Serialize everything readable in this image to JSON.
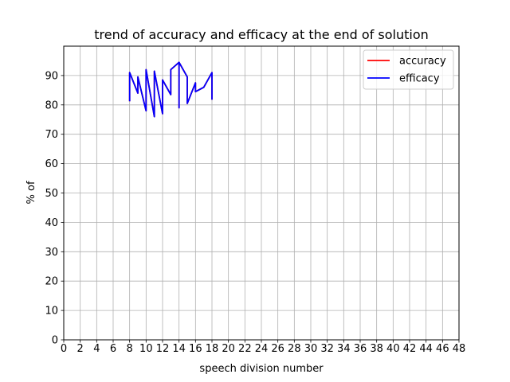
{
  "chart_data": {
    "type": "line",
    "title": "trend of accuracy and efficacy at the end of solution",
    "xlabel": "speech division number",
    "ylabel": "% of",
    "xlim": [
      0,
      48
    ],
    "ylim": [
      0,
      100
    ],
    "x_ticks": [
      0,
      2,
      4,
      6,
      8,
      10,
      12,
      14,
      16,
      18,
      20,
      22,
      24,
      26,
      28,
      30,
      32,
      34,
      36,
      38,
      40,
      42,
      44,
      46,
      48
    ],
    "y_ticks": [
      0,
      10,
      20,
      30,
      40,
      50,
      60,
      70,
      80,
      90
    ],
    "grid": true,
    "legend_position": "top-right",
    "series": [
      {
        "name": "accuracy",
        "color": "#ff0000",
        "points": [
          [
            8,
            81.5
          ],
          [
            8,
            91
          ],
          [
            9,
            84
          ],
          [
            9,
            89.5
          ],
          [
            10,
            78
          ],
          [
            10,
            92
          ],
          [
            11,
            76
          ],
          [
            11,
            91.5
          ],
          [
            12,
            77
          ],
          [
            12,
            88.5
          ],
          [
            13,
            83.5
          ],
          [
            13,
            92
          ],
          [
            14,
            94.5
          ],
          [
            14,
            79
          ],
          [
            14,
            94.5
          ],
          [
            15,
            89.5
          ],
          [
            15,
            80.5
          ],
          [
            16,
            87.5
          ],
          [
            16,
            84.5
          ],
          [
            17,
            86
          ],
          [
            18,
            91
          ],
          [
            18,
            82
          ]
        ]
      },
      {
        "name": "efficacy",
        "color": "#0000ff",
        "points": [
          [
            8,
            81.5
          ],
          [
            8,
            91
          ],
          [
            9,
            84
          ],
          [
            9,
            89.5
          ],
          [
            10,
            78
          ],
          [
            10,
            92
          ],
          [
            11,
            76
          ],
          [
            11,
            91.5
          ],
          [
            12,
            77
          ],
          [
            12,
            88.5
          ],
          [
            13,
            83.5
          ],
          [
            13,
            92
          ],
          [
            14,
            94.5
          ],
          [
            14,
            79
          ],
          [
            14,
            94.5
          ],
          [
            15,
            89.5
          ],
          [
            15,
            80.5
          ],
          [
            16,
            87.5
          ],
          [
            16,
            84.5
          ],
          [
            17,
            86
          ],
          [
            18,
            91
          ],
          [
            18,
            82
          ]
        ]
      }
    ]
  }
}
